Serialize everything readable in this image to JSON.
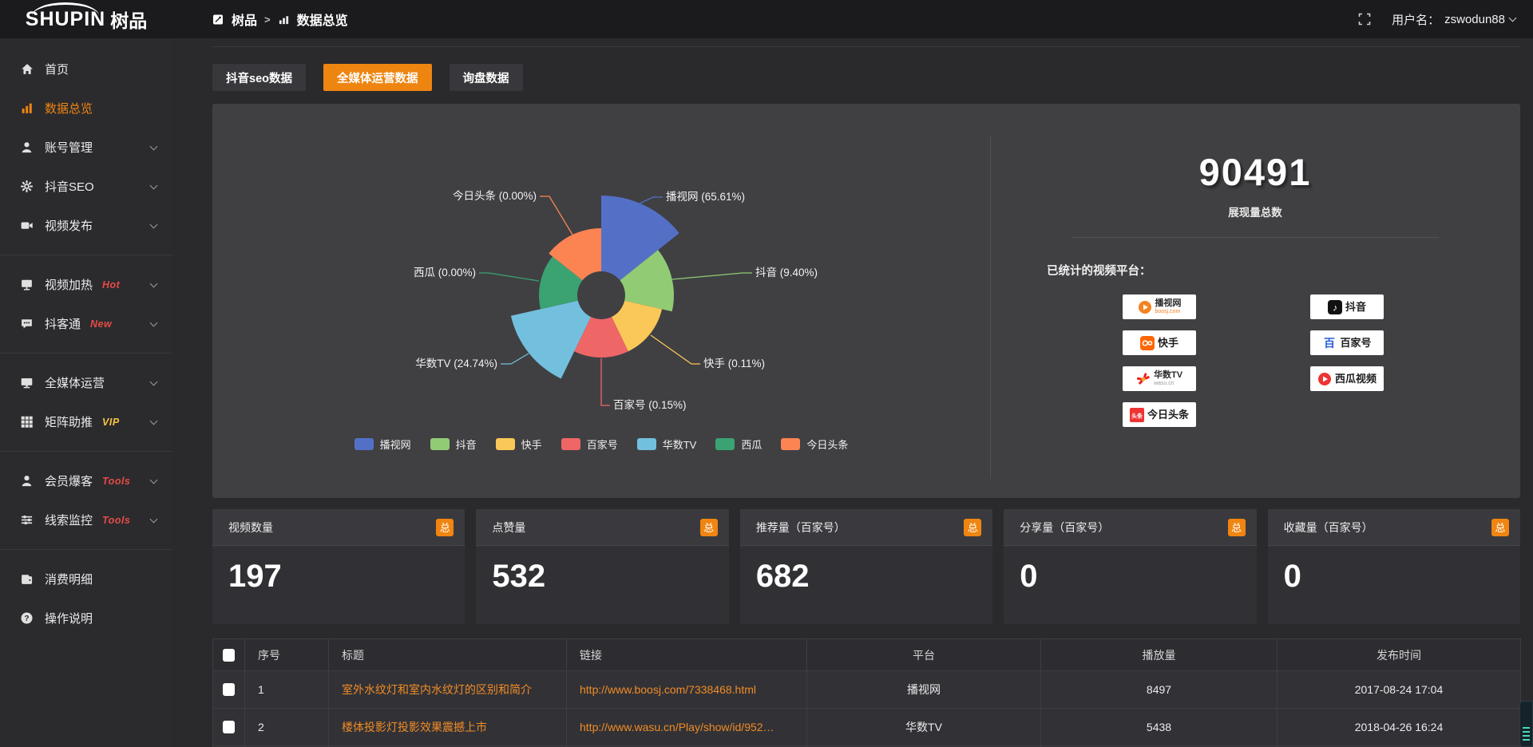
{
  "topbar": {
    "logo": {
      "en": "SHUPIN",
      "cn": "树品"
    },
    "breadcrumb": {
      "root": "树品",
      "separator": ">",
      "current": "数据总览"
    },
    "user": {
      "label": "用户名：",
      "name": "zswodun88"
    }
  },
  "sidebar": {
    "items": [
      {
        "label": "首页",
        "icon": "home-icon"
      },
      {
        "label": "数据总览",
        "icon": "bar-chart-icon",
        "active": true
      },
      {
        "label": "账号管理",
        "icon": "user-icon",
        "expandable": true
      },
      {
        "label": "抖音SEO",
        "icon": "gear-icon",
        "expandable": true
      },
      {
        "label": "视频发布",
        "icon": "video-icon",
        "expandable": true
      },
      {
        "divider": true
      },
      {
        "label": "视频加热",
        "icon": "screen-icon",
        "tag": "Hot",
        "tag_color": "#e84a45",
        "expandable": true
      },
      {
        "label": "抖客通",
        "icon": "chat-icon",
        "tag": "New",
        "tag_color": "#e84a45",
        "expandable": true
      },
      {
        "divider": true
      },
      {
        "label": "全媒体运营",
        "icon": "monitor-icon",
        "expandable": true
      },
      {
        "label": "矩阵助推",
        "icon": "grid-icon",
        "tag": "VIP",
        "tag_color": "#f6c544",
        "expandable": true
      },
      {
        "divider": true
      },
      {
        "label": "会员爆客",
        "icon": "person-icon",
        "tag": "Tools",
        "tag_color": "#e84a45",
        "expandable": true
      },
      {
        "label": "线索监控",
        "icon": "sliders-icon",
        "tag": "Tools",
        "tag_color": "#e84a45",
        "expandable": true
      },
      {
        "divider": true
      },
      {
        "label": "消费明细",
        "icon": "wallet-icon"
      },
      {
        "label": "操作说明",
        "icon": "help-icon"
      }
    ]
  },
  "tabs": [
    {
      "label": "抖音seo数据",
      "active": false
    },
    {
      "label": "全媒体运营数据",
      "active": true
    },
    {
      "label": "询盘数据",
      "active": false
    }
  ],
  "chart_data": {
    "type": "pie",
    "subtype": "nightingale-rose-donut",
    "legend_position": "bottom",
    "series": [
      {
        "name": "播视网",
        "value_pct": 65.61,
        "color": "#5470c6"
      },
      {
        "name": "抖音",
        "value_pct": 9.4,
        "color": "#91cc75"
      },
      {
        "name": "快手",
        "value_pct": 0.11,
        "color": "#fac858"
      },
      {
        "name": "百家号",
        "value_pct": 0.15,
        "color": "#ee6666"
      },
      {
        "name": "华数TV",
        "value_pct": 24.74,
        "color": "#73c0de"
      },
      {
        "name": "西瓜",
        "value_pct": 0.0,
        "color": "#3ba272"
      },
      {
        "name": "今日头条",
        "value_pct": 0.0,
        "color": "#fc8452"
      }
    ],
    "legend": [
      "播视网",
      "抖音",
      "快手",
      "百家号",
      "华数TV",
      "西瓜",
      "今日头条"
    ]
  },
  "summary": {
    "total_value": "90491",
    "total_label": "展现量总数",
    "platforms_title": "已统计的视频平台：",
    "platforms_left": [
      {
        "name": "播视网",
        "sub": "boosj.com",
        "logo": "boosj-play-icon"
      },
      {
        "name": "快手",
        "logo": "kuaishou-icon"
      },
      {
        "name": "华数TV",
        "sub": "wasu.cn",
        "logo": "wasu-star-icon"
      },
      {
        "name": "今日头条",
        "logo": "toutiao-icon",
        "logo_text": "头条"
      }
    ],
    "platforms_right": [
      {
        "name": "抖音",
        "logo": "douyin-note-icon"
      },
      {
        "name": "百家号",
        "logo": "baijiahao-icon",
        "logo_text": "百"
      },
      {
        "name": "西瓜视频",
        "logo": "xigua-play-icon"
      }
    ]
  },
  "stat_cards": [
    {
      "label": "视频数量",
      "badge": "总",
      "value": "197"
    },
    {
      "label": "点赞量",
      "badge": "总",
      "value": "532"
    },
    {
      "label": "推荐量（百家号）",
      "badge": "总",
      "value": "682"
    },
    {
      "label": "分享量（百家号）",
      "badge": "总",
      "value": "0"
    },
    {
      "label": "收藏量（百家号）",
      "badge": "总",
      "value": "0"
    }
  ],
  "table": {
    "headers": [
      "序号",
      "标题",
      "链接",
      "平台",
      "播放量",
      "发布时间"
    ],
    "rows": [
      {
        "no": "1",
        "title": "室外水纹灯和室内水纹灯的区别和简介",
        "link": "http://www.boosj.com/7338468.html",
        "platform": "播视网",
        "plays": "8497",
        "time": "2017-08-24 17:04"
      },
      {
        "no": "2",
        "title": "楼体投影灯投影效果震撼上市",
        "link": "http://www.wasu.cn/Play/show/id/952…",
        "platform": "华数TV",
        "plays": "5438",
        "time": "2018-04-26 16:24"
      }
    ]
  },
  "colors": {
    "accent_orange": "#ee8511",
    "link_orange": "#f18b26",
    "tag_red": "#e84a45",
    "tag_yellow": "#f6c544"
  }
}
